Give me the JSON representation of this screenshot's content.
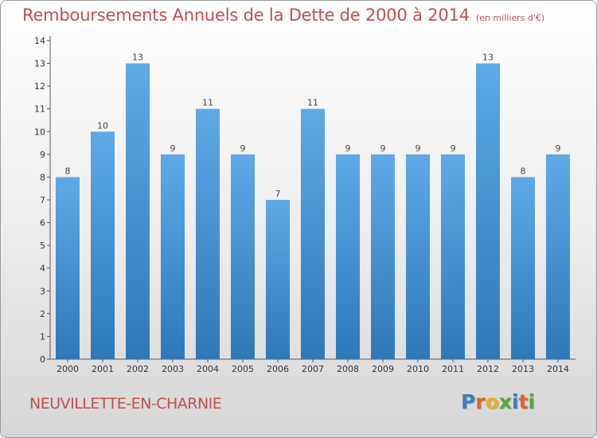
{
  "header": {
    "title": "Remboursements Annuels de la Dette de 2000 à 2014",
    "subtitle": "(en milliers d'€)"
  },
  "footer": {
    "commune": "NEUVILLETTE-EN-CHARNIE",
    "logo": {
      "text": "Proxiti",
      "letters": [
        "P",
        "r",
        "o",
        "x",
        "i",
        "t",
        "i"
      ],
      "colors": [
        "#3a7fc4",
        "#e0632a",
        "#e8b21c",
        "#5aa63c",
        "#3a7fc4",
        "#e0632a",
        "#5aa63c"
      ]
    }
  },
  "chart_data": {
    "type": "bar",
    "title": "Remboursements Annuels de la Dette de 2000 à 2014",
    "subtitle": "(en milliers d'€)",
    "categories": [
      "2000",
      "2001",
      "2002",
      "2003",
      "2004",
      "2005",
      "2006",
      "2007",
      "2008",
      "2009",
      "2010",
      "2011",
      "2012",
      "2013",
      "2014"
    ],
    "values": [
      8,
      10,
      13,
      9,
      11,
      9,
      7,
      11,
      9,
      9,
      9,
      9,
      13,
      8,
      9
    ],
    "data_labels": [
      "8",
      "10",
      "13",
      "9",
      "11",
      "9",
      "7",
      "11",
      "9",
      "9",
      "9",
      "9",
      "13",
      "8",
      "9"
    ],
    "yticks": [
      "0",
      "1",
      "2",
      "3",
      "4",
      "5",
      "6",
      "7",
      "8",
      "9",
      "10",
      "11",
      "12",
      "13",
      "14"
    ],
    "ylim": [
      0,
      14
    ],
    "xlabel": "",
    "ylabel": "",
    "grid": false,
    "colors": {
      "bar": "#5ea9e6",
      "bar_dark": "#2e78b8",
      "axis": "#555555"
    }
  }
}
